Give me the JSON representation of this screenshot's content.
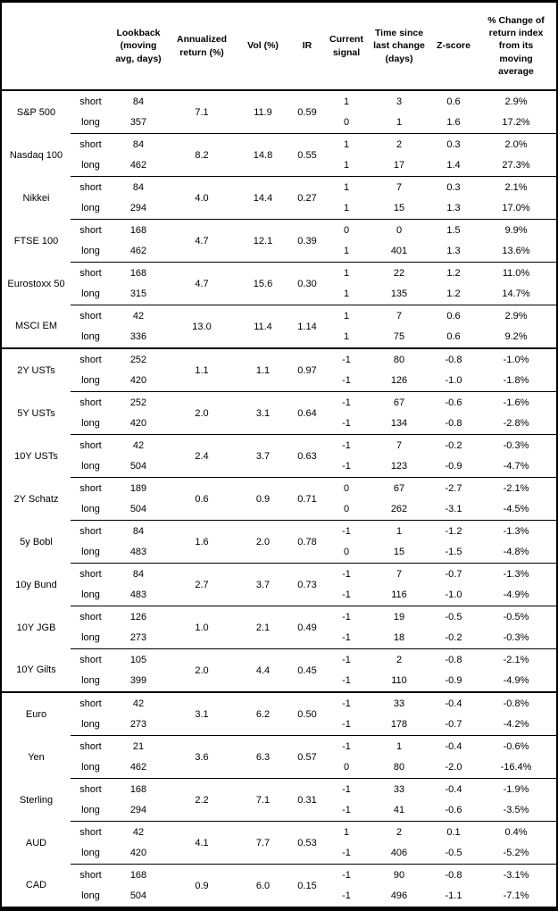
{
  "chart_data": {
    "type": "table",
    "title": "",
    "headers": [
      "Lookback\n(moving\navg, days)",
      "Annualized\nreturn (%)",
      "Vol (%)",
      "IR",
      "Current\nsignal",
      "Time since\nlast change\n(days)",
      "Z-score",
      "% Change of\nreturn index\nfrom its\nmoving\naverage"
    ],
    "leg_labels": {
      "short": "short",
      "long": "long"
    },
    "groups": [
      {
        "asset": "S&P 500",
        "section_start": false,
        "annualized_return": "7.1",
        "vol": "11.9",
        "ir": "0.59",
        "short": {
          "lookback": "84",
          "signal": "1",
          "days_since_change": "3",
          "z_score": "0.6",
          "pct_change": "2.9%"
        },
        "long": {
          "lookback": "357",
          "signal": "0",
          "days_since_change": "1",
          "z_score": "1.6",
          "pct_change": "17.2%"
        }
      },
      {
        "asset": "Nasdaq 100",
        "section_start": false,
        "annualized_return": "8.2",
        "vol": "14.8",
        "ir": "0.55",
        "short": {
          "lookback": "84",
          "signal": "1",
          "days_since_change": "2",
          "z_score": "0.3",
          "pct_change": "2.0%"
        },
        "long": {
          "lookback": "462",
          "signal": "1",
          "days_since_change": "17",
          "z_score": "1.4",
          "pct_change": "27.3%"
        }
      },
      {
        "asset": "Nikkei",
        "section_start": false,
        "annualized_return": "4.0",
        "vol": "14.4",
        "ir": "0.27",
        "short": {
          "lookback": "84",
          "signal": "1",
          "days_since_change": "7",
          "z_score": "0.3",
          "pct_change": "2.1%"
        },
        "long": {
          "lookback": "294",
          "signal": "1",
          "days_since_change": "15",
          "z_score": "1.3",
          "pct_change": "17.0%"
        }
      },
      {
        "asset": "FTSE 100",
        "section_start": false,
        "annualized_return": "4.7",
        "vol": "12.1",
        "ir": "0.39",
        "short": {
          "lookback": "168",
          "signal": "0",
          "days_since_change": "0",
          "z_score": "1.5",
          "pct_change": "9.9%"
        },
        "long": {
          "lookback": "462",
          "signal": "1",
          "days_since_change": "401",
          "z_score": "1.3",
          "pct_change": "13.6%"
        }
      },
      {
        "asset": "Eurostoxx 50",
        "section_start": false,
        "annualized_return": "4.7",
        "vol": "15.6",
        "ir": "0.30",
        "short": {
          "lookback": "168",
          "signal": "1",
          "days_since_change": "22",
          "z_score": "1.2",
          "pct_change": "11.0%"
        },
        "long": {
          "lookback": "315",
          "signal": "1",
          "days_since_change": "135",
          "z_score": "1.2",
          "pct_change": "14.7%"
        }
      },
      {
        "asset": "MSCI EM",
        "section_start": false,
        "annualized_return": "13.0",
        "vol": "11.4",
        "ir": "1.14",
        "short": {
          "lookback": "42",
          "signal": "1",
          "days_since_change": "7",
          "z_score": "0.6",
          "pct_change": "2.9%"
        },
        "long": {
          "lookback": "336",
          "signal": "1",
          "days_since_change": "75",
          "z_score": "0.6",
          "pct_change": "9.2%"
        }
      },
      {
        "asset": "2Y USTs",
        "section_start": true,
        "annualized_return": "1.1",
        "vol": "1.1",
        "ir": "0.97",
        "short": {
          "lookback": "252",
          "signal": "-1",
          "days_since_change": "80",
          "z_score": "-0.8",
          "pct_change": "-1.0%"
        },
        "long": {
          "lookback": "420",
          "signal": "-1",
          "days_since_change": "126",
          "z_score": "-1.0",
          "pct_change": "-1.8%"
        }
      },
      {
        "asset": "5Y USTs",
        "section_start": false,
        "annualized_return": "2.0",
        "vol": "3.1",
        "ir": "0.64",
        "short": {
          "lookback": "252",
          "signal": "-1",
          "days_since_change": "67",
          "z_score": "-0.6",
          "pct_change": "-1.6%"
        },
        "long": {
          "lookback": "420",
          "signal": "-1",
          "days_since_change": "134",
          "z_score": "-0.8",
          "pct_change": "-2.8%"
        }
      },
      {
        "asset": "10Y USTs",
        "section_start": false,
        "annualized_return": "2.4",
        "vol": "3.7",
        "ir": "0.63",
        "short": {
          "lookback": "42",
          "signal": "-1",
          "days_since_change": "7",
          "z_score": "-0.2",
          "pct_change": "-0.3%"
        },
        "long": {
          "lookback": "504",
          "signal": "-1",
          "days_since_change": "123",
          "z_score": "-0.9",
          "pct_change": "-4.7%"
        }
      },
      {
        "asset": "2Y Schatz",
        "section_start": false,
        "annualized_return": "0.6",
        "vol": "0.9",
        "ir": "0.71",
        "short": {
          "lookback": "189",
          "signal": "0",
          "days_since_change": "67",
          "z_score": "-2.7",
          "pct_change": "-2.1%"
        },
        "long": {
          "lookback": "504",
          "signal": "0",
          "days_since_change": "262",
          "z_score": "-3.1",
          "pct_change": "-4.5%"
        }
      },
      {
        "asset": "5y Bobl",
        "section_start": false,
        "annualized_return": "1.6",
        "vol": "2.0",
        "ir": "0.78",
        "short": {
          "lookback": "84",
          "signal": "-1",
          "days_since_change": "1",
          "z_score": "-1.2",
          "pct_change": "-1.3%"
        },
        "long": {
          "lookback": "483",
          "signal": "0",
          "days_since_change": "15",
          "z_score": "-1.5",
          "pct_change": "-4.8%"
        }
      },
      {
        "asset": "10y Bund",
        "section_start": false,
        "annualized_return": "2.7",
        "vol": "3.7",
        "ir": "0.73",
        "short": {
          "lookback": "84",
          "signal": "-1",
          "days_since_change": "7",
          "z_score": "-0.7",
          "pct_change": "-1.3%"
        },
        "long": {
          "lookback": "483",
          "signal": "-1",
          "days_since_change": "116",
          "z_score": "-1.0",
          "pct_change": "-4.9%"
        }
      },
      {
        "asset": "10Y JGB",
        "section_start": false,
        "annualized_return": "1.0",
        "vol": "2.1",
        "ir": "0.49",
        "short": {
          "lookback": "126",
          "signal": "-1",
          "days_since_change": "19",
          "z_score": "-0.5",
          "pct_change": "-0.5%"
        },
        "long": {
          "lookback": "273",
          "signal": "-1",
          "days_since_change": "18",
          "z_score": "-0.2",
          "pct_change": "-0.3%"
        }
      },
      {
        "asset": "10Y Gilts",
        "section_start": false,
        "annualized_return": "2.0",
        "vol": "4.4",
        "ir": "0.45",
        "short": {
          "lookback": "105",
          "signal": "-1",
          "days_since_change": "2",
          "z_score": "-0.8",
          "pct_change": "-2.1%"
        },
        "long": {
          "lookback": "399",
          "signal": "-1",
          "days_since_change": "110",
          "z_score": "-0.9",
          "pct_change": "-4.9%"
        }
      },
      {
        "asset": "Euro",
        "section_start": true,
        "annualized_return": "3.1",
        "vol": "6.2",
        "ir": "0.50",
        "short": {
          "lookback": "42",
          "signal": "-1",
          "days_since_change": "33",
          "z_score": "-0.4",
          "pct_change": "-0.8%"
        },
        "long": {
          "lookback": "273",
          "signal": "-1",
          "days_since_change": "178",
          "z_score": "-0.7",
          "pct_change": "-4.2%"
        }
      },
      {
        "asset": "Yen",
        "section_start": false,
        "annualized_return": "3.6",
        "vol": "6.3",
        "ir": "0.57",
        "short": {
          "lookback": "21",
          "signal": "-1",
          "days_since_change": "1",
          "z_score": "-0.4",
          "pct_change": "-0.6%"
        },
        "long": {
          "lookback": "462",
          "signal": "0",
          "days_since_change": "80",
          "z_score": "-2.0",
          "pct_change": "-16.4%"
        }
      },
      {
        "asset": "Sterling",
        "section_start": false,
        "annualized_return": "2.2",
        "vol": "7.1",
        "ir": "0.31",
        "short": {
          "lookback": "168",
          "signal": "-1",
          "days_since_change": "33",
          "z_score": "-0.4",
          "pct_change": "-1.9%"
        },
        "long": {
          "lookback": "294",
          "signal": "-1",
          "days_since_change": "41",
          "z_score": "-0.6",
          "pct_change": "-3.5%"
        }
      },
      {
        "asset": "AUD",
        "section_start": false,
        "annualized_return": "4.1",
        "vol": "7.7",
        "ir": "0.53",
        "short": {
          "lookback": "42",
          "signal": "1",
          "days_since_change": "2",
          "z_score": "0.1",
          "pct_change": "0.4%"
        },
        "long": {
          "lookback": "420",
          "signal": "-1",
          "days_since_change": "406",
          "z_score": "-0.5",
          "pct_change": "-5.2%"
        }
      },
      {
        "asset": "CAD",
        "section_start": false,
        "annualized_return": "0.9",
        "vol": "6.0",
        "ir": "0.15",
        "short": {
          "lookback": "168",
          "signal": "-1",
          "days_since_change": "90",
          "z_score": "-0.8",
          "pct_change": "-3.1%"
        },
        "long": {
          "lookback": "504",
          "signal": "-1",
          "days_since_change": "496",
          "z_score": "-1.1",
          "pct_change": "-7.1%"
        }
      }
    ]
  }
}
